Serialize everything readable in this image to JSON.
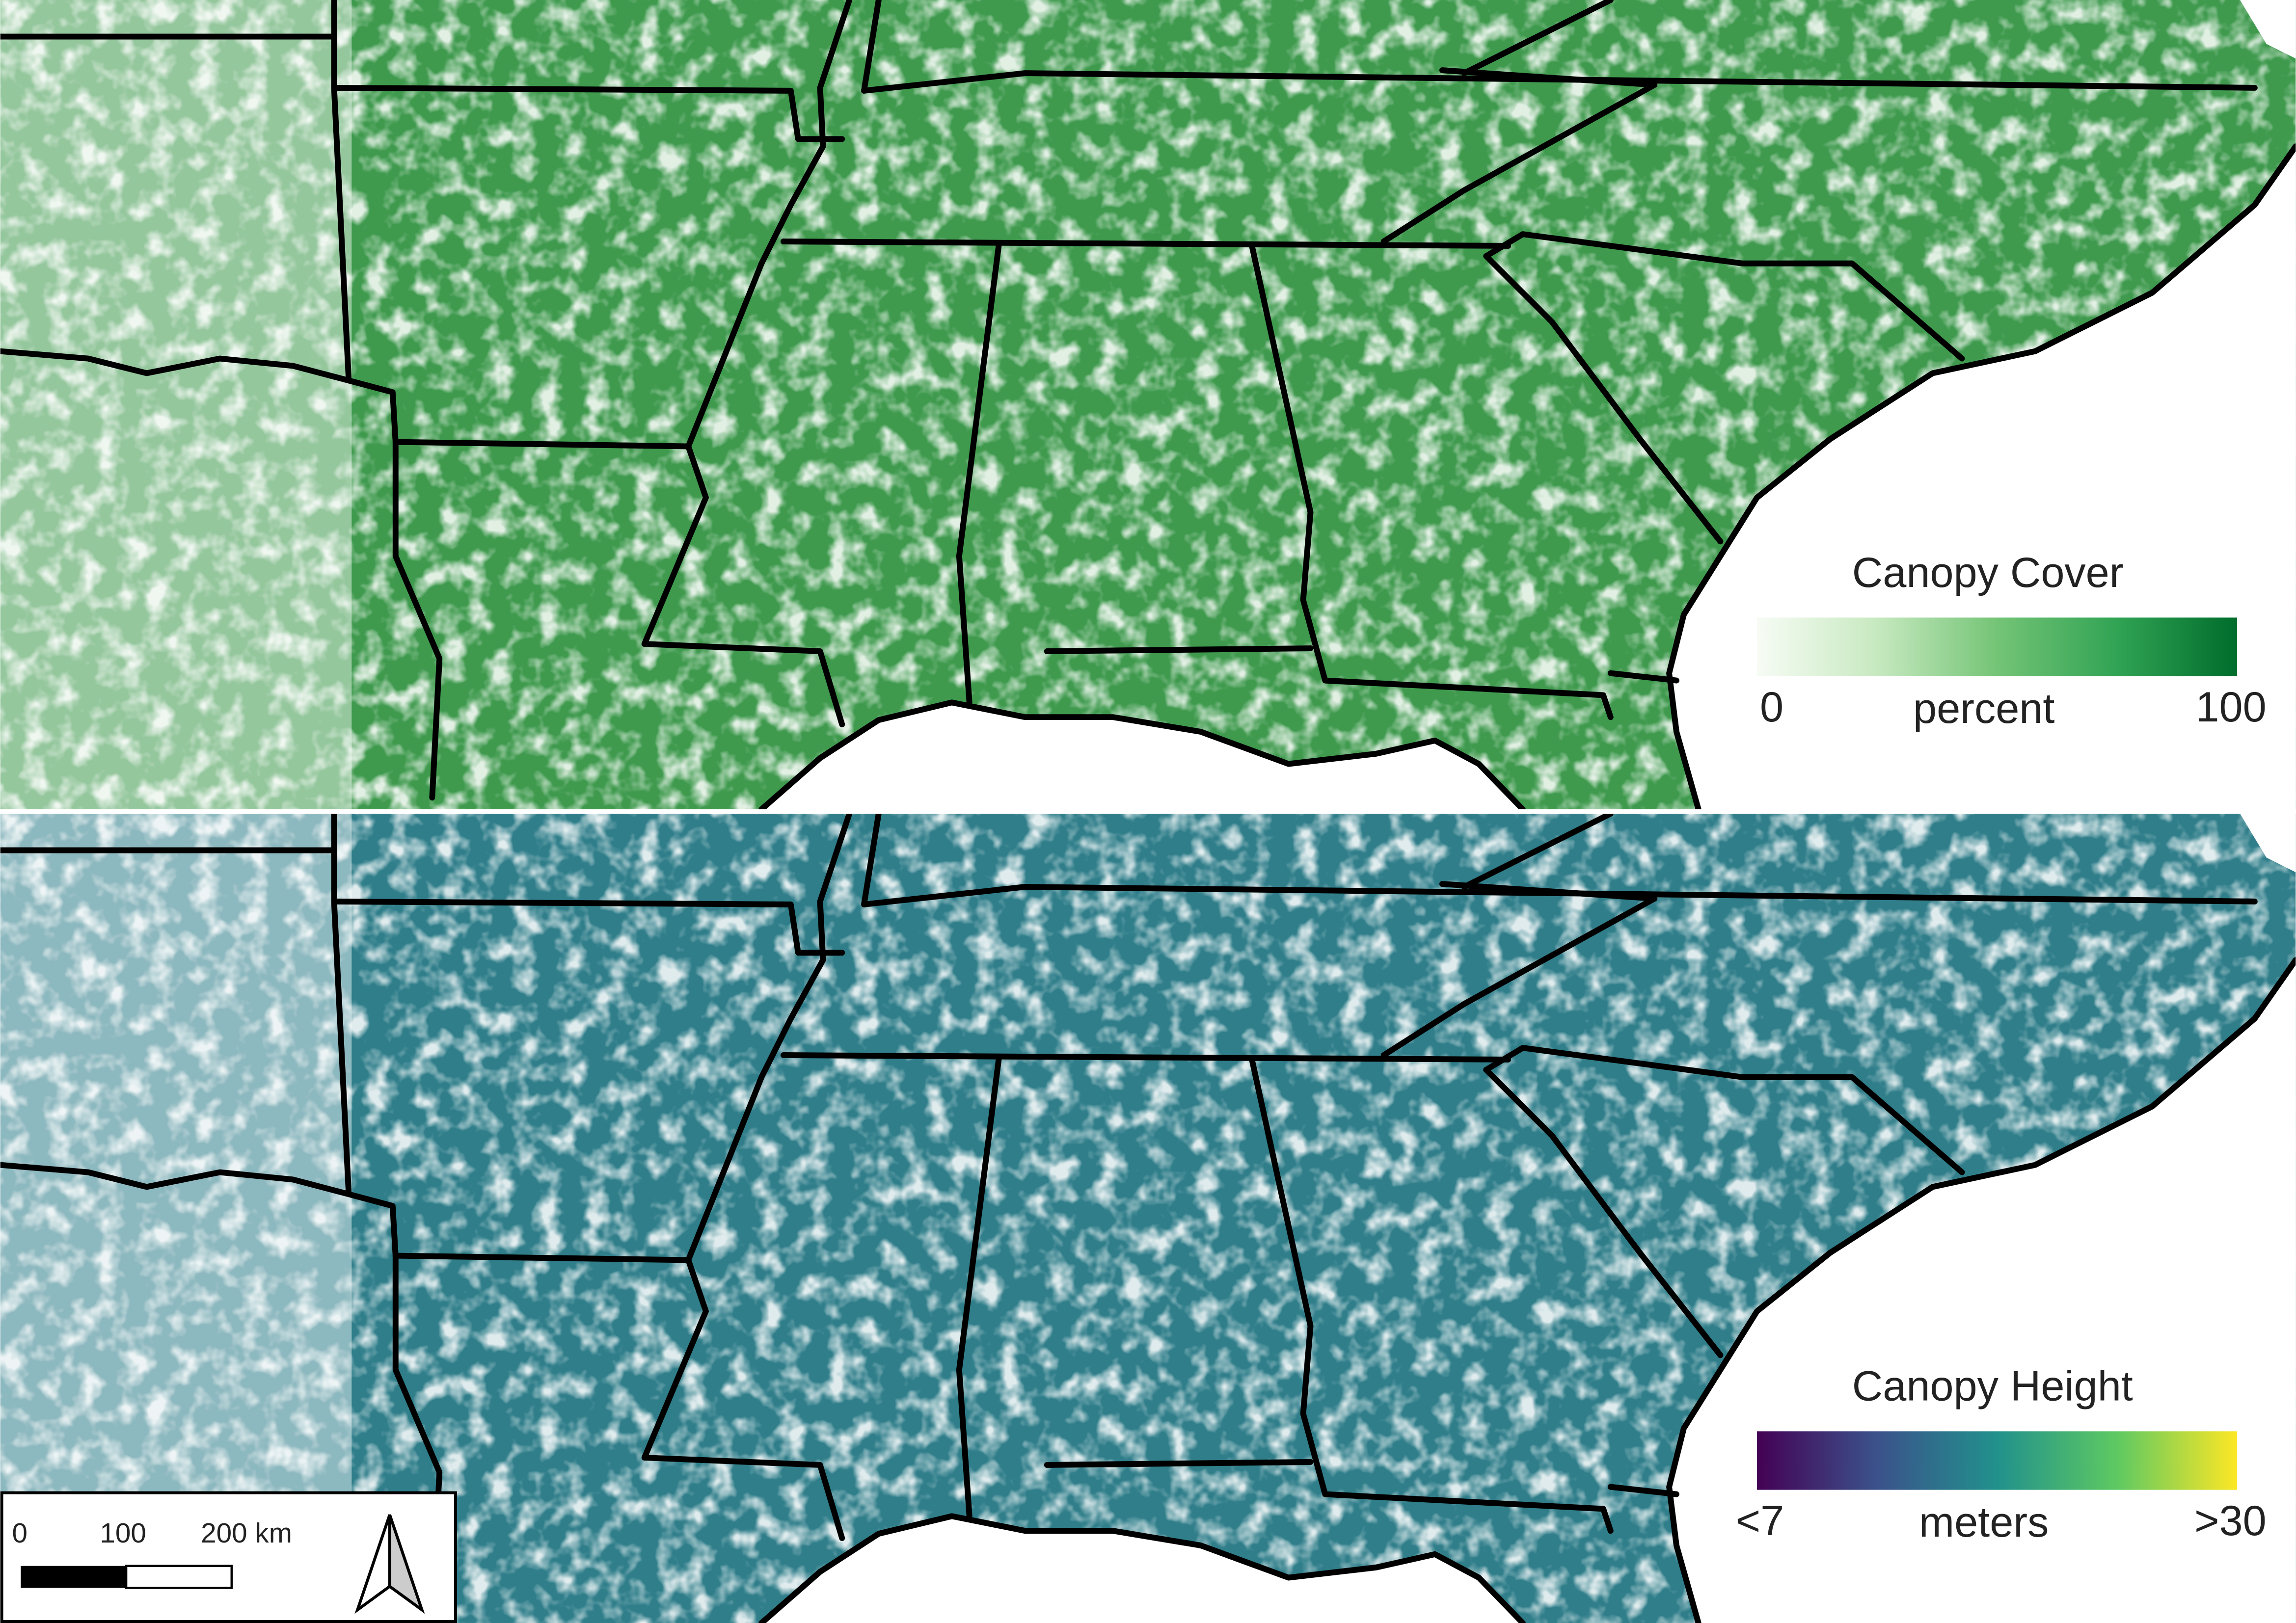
{
  "panels": [
    {
      "legend": {
        "title": "Canopy Cover",
        "unit": "percent",
        "min_label": "0",
        "max_label": "100",
        "gradient": [
          "#f7fcf5",
          "#c7e9c0",
          "#74c476",
          "#31a354",
          "#006d2c"
        ]
      },
      "land_color": "#3f9a4e"
    },
    {
      "legend": {
        "title": "Canopy Height",
        "unit": "meters",
        "min_label": "<7",
        "max_label": ">30",
        "gradient": [
          "#440154",
          "#3b528b",
          "#21918c",
          "#5ec962",
          "#fde725"
        ]
      },
      "land_color": "#2f7e8a"
    }
  ],
  "scale_bar": {
    "labels": [
      "0",
      "100",
      "200 km"
    ]
  }
}
